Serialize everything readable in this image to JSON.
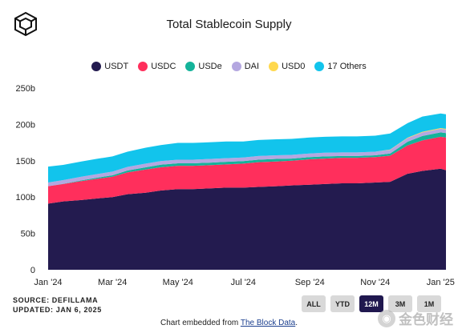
{
  "header": {
    "title": "Total Stablecoin Supply"
  },
  "chart_data": {
    "type": "area",
    "stacked": true,
    "title": "Total Stablecoin Supply",
    "xlabel": "",
    "ylabel": "",
    "ylim": [
      0,
      250
    ],
    "y_ticks": [
      "0",
      "50b",
      "100b",
      "150b",
      "200b",
      "250b"
    ],
    "x_ticks": [
      "Jan '24",
      "Mar '24",
      "May '24",
      "Jul '24",
      "Sep '24",
      "Nov '24",
      "Jan '25"
    ],
    "x": [
      "2024-01-01",
      "2024-01-15",
      "2024-02-01",
      "2024-02-15",
      "2024-03-01",
      "2024-03-15",
      "2024-04-01",
      "2024-04-15",
      "2024-05-01",
      "2024-05-15",
      "2024-06-01",
      "2024-06-15",
      "2024-07-01",
      "2024-07-15",
      "2024-08-01",
      "2024-08-15",
      "2024-09-01",
      "2024-09-15",
      "2024-10-01",
      "2024-10-15",
      "2024-11-01",
      "2024-11-15",
      "2024-12-01",
      "2024-12-15",
      "2025-01-01",
      "2025-01-06"
    ],
    "legend_position": "top-center",
    "grid": false,
    "series": [
      {
        "name": "USDT",
        "color": "#231b4f",
        "values": [
          91,
          94,
          96,
          98,
          100,
          104,
          106,
          109,
          111,
          111,
          112,
          113,
          113,
          114,
          115,
          116,
          117,
          118,
          119,
          119,
          120,
          121,
          132,
          136,
          139,
          137
        ]
      },
      {
        "name": "USDC",
        "color": "#ff2f5c",
        "values": [
          24,
          24,
          26,
          27,
          28,
          30,
          32,
          32,
          32,
          32,
          32,
          32,
          33,
          34,
          34,
          34,
          35,
          35,
          35,
          35,
          35,
          36,
          39,
          42,
          44,
          45
        ]
      },
      {
        "name": "USDe",
        "color": "#14b39a",
        "values": [
          0,
          0.3,
          1,
          1.5,
          2,
          2.5,
          3,
          3.5,
          3.5,
          3.5,
          3.5,
          3.5,
          3.5,
          3.5,
          3.5,
          3,
          3,
          3,
          2.5,
          2.5,
          2.5,
          3,
          5,
          6,
          6,
          6
        ]
      },
      {
        "name": "DAI",
        "color": "#b4a7e0",
        "values": [
          5,
          5,
          5,
          5,
          5,
          5,
          5,
          5,
          5,
          5,
          5,
          5,
          5,
          5,
          5,
          5,
          5,
          5,
          5,
          5,
          5,
          5,
          5,
          5,
          5,
          5
        ]
      },
      {
        "name": "USD0",
        "color": "#ffd84d",
        "values": [
          0,
          0,
          0,
          0,
          0,
          0,
          0,
          0,
          0,
          0,
          0,
          0,
          0,
          0,
          0,
          0,
          0,
          0,
          0,
          0,
          0,
          0.5,
          0.6,
          0.8,
          1,
          1
        ]
      },
      {
        "name": "17 Others",
        "color": "#12c4ec",
        "values": [
          22,
          21,
          21,
          21,
          21,
          21,
          22,
          22,
          23,
          23,
          23,
          23,
          22,
          22,
          22,
          22,
          22,
          22,
          22,
          22,
          22,
          22,
          20,
          21,
          20,
          20
        ]
      }
    ]
  },
  "footer": {
    "source": "SOURCE: DEFILLAMA",
    "updated": "UPDATED: JAN 6, 2025",
    "embed_prefix": "Chart embedded from ",
    "embed_link": "The Block Data",
    "embed_suffix": "."
  },
  "range_buttons": [
    {
      "label": "ALL"
    },
    {
      "label": "YTD"
    },
    {
      "label": "12M",
      "active": true
    },
    {
      "label": "3M"
    },
    {
      "label": "1M"
    }
  ],
  "watermark": {
    "icon": "jinse-coin-icon",
    "text": "金色财经"
  }
}
